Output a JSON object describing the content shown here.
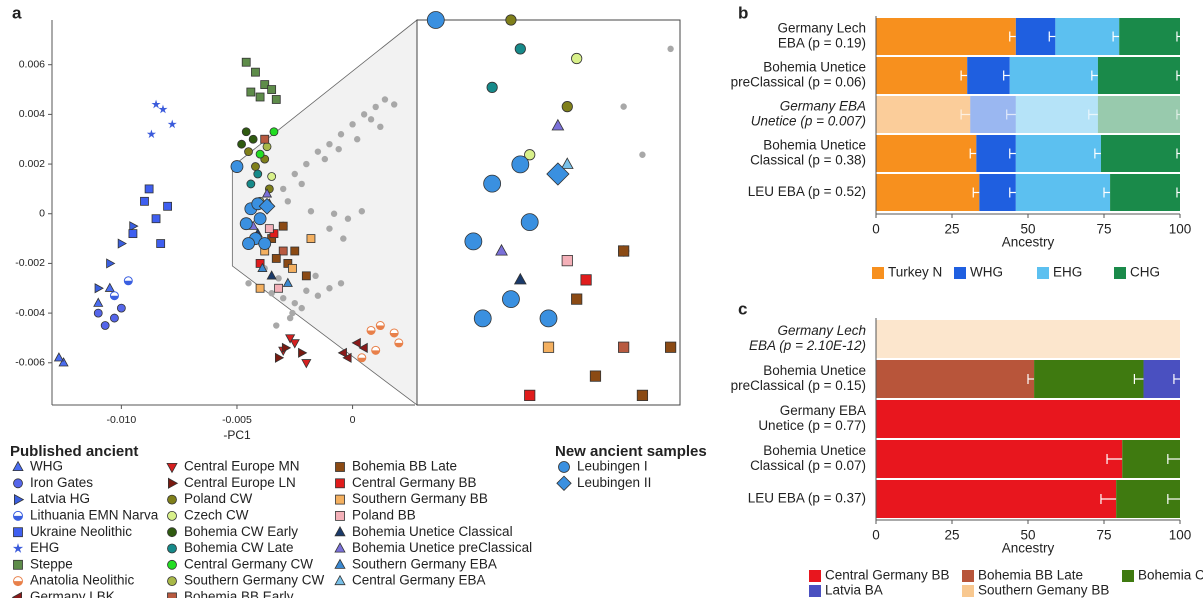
{
  "chart_data": [
    {
      "type": "scatter",
      "panel": "a",
      "x_label": "-PC1",
      "xlim": [
        -0.013,
        0.0027
      ],
      "ylim": [
        -0.0077,
        0.0078
      ],
      "xticks": [
        {
          "value": -0.01,
          "label": "-0.010"
        },
        -0.005,
        0
      ],
      "yticks": [
        -0.006,
        -0.004,
        -0.002,
        0,
        0.002,
        0.004,
        0.006
      ],
      "inset_xlim": [
        -0.0052,
        -0.0024
      ],
      "inset_ylim": [
        -0.0021,
        0.0019
      ],
      "background_points": {
        "color": "#a8a8a8",
        "x": [
          -0.003,
          -0.0025,
          -0.002,
          -0.0015,
          -0.001,
          -0.0005,
          0.0,
          0.0005,
          0.001,
          0.0014,
          0.0018,
          -0.0028,
          -0.0022,
          -0.0012,
          -0.0006,
          0.0002,
          0.0008,
          -0.0018,
          -0.001,
          -0.0004,
          0.0012,
          -0.0008,
          -0.0002,
          0.0004,
          -0.0045,
          -0.004,
          -0.0035,
          -0.003,
          -0.0025,
          -0.002,
          -0.0015,
          -0.001,
          -0.0005,
          -0.0032,
          -0.0026,
          -0.0038,
          -0.0033,
          -0.0027,
          -0.0022,
          -0.0016
        ],
        "y": [
          0.001,
          0.0016,
          0.002,
          0.0025,
          0.0028,
          0.0032,
          0.0036,
          0.004,
          0.0043,
          0.0046,
          0.0044,
          0.0005,
          0.0012,
          0.0022,
          0.0026,
          0.003,
          0.0038,
          0.0001,
          -0.0006,
          -0.001,
          0.0035,
          0.0,
          -0.0002,
          0.0001,
          -0.0028,
          -0.003,
          -0.0032,
          -0.0034,
          -0.0036,
          -0.0031,
          -0.0033,
          -0.003,
          -0.0028,
          -0.0026,
          -0.004,
          -0.0022,
          -0.0045,
          -0.0042,
          -0.0038,
          -0.0025
        ]
      },
      "legend_title": "Published ancient",
      "series": [
        {
          "name": "WHG",
          "color": "#4a6cf0",
          "marker": "triangle-up",
          "x": [
            -0.0125,
            -0.0127,
            -0.011,
            -0.0105
          ],
          "y": [
            -0.006,
            -0.0058,
            -0.0036,
            -0.003
          ]
        },
        {
          "name": "Iron Gates",
          "color": "#5566ea",
          "marker": "circle",
          "x": [
            -0.0107,
            -0.0103,
            -0.011,
            -0.01
          ],
          "y": [
            -0.0045,
            -0.0042,
            -0.004,
            -0.0038
          ]
        },
        {
          "name": "Latvia HG",
          "color": "#3a5fe0",
          "marker": "triangle-right",
          "x": [
            -0.0105,
            -0.01,
            -0.011,
            -0.0095
          ],
          "y": [
            -0.002,
            -0.0012,
            -0.003,
            -0.0005
          ]
        },
        {
          "name": "Lithuania EMN Narva",
          "color": "#3a5fe0",
          "marker": "half-circle",
          "x": [
            -0.0097,
            -0.0103
          ],
          "y": [
            -0.0027,
            -0.0033
          ]
        },
        {
          "name": "Ukraine Neolithic",
          "color": "#3f5ff0",
          "marker": "square",
          "x": [
            -0.009,
            -0.0085,
            -0.008,
            -0.0095,
            -0.0088,
            -0.0083
          ],
          "y": [
            0.0005,
            -0.0002,
            0.0003,
            -0.0008,
            0.001,
            -0.0012
          ]
        },
        {
          "name": "EHG",
          "color": "#3b5bdb",
          "marker": "star",
          "x": [
            -0.0085,
            -0.0087,
            -0.0078,
            -0.0082
          ],
          "y": [
            0.0044,
            0.0032,
            0.0036,
            0.0042
          ]
        },
        {
          "name": "Steppe",
          "color": "#5e8c4a",
          "marker": "square",
          "x": [
            -0.0042,
            -0.0038,
            -0.0035,
            -0.004,
            -0.0033,
            -0.0046,
            -0.0044
          ],
          "y": [
            0.0057,
            0.0052,
            0.005,
            0.0047,
            0.0046,
            0.0061,
            0.0049
          ]
        },
        {
          "name": "Anatolia Neolithic",
          "color": "#e8804a",
          "marker": "half-circle",
          "x": [
            0.0008,
            0.0012,
            0.0018,
            0.001,
            0.002,
            0.0004
          ],
          "y": [
            -0.0047,
            -0.0045,
            -0.0048,
            -0.0055,
            -0.0052,
            -0.0058
          ]
        },
        {
          "name": "Germany LBK",
          "color": "#8b1a1a",
          "marker": "triangle-left",
          "x": [
            -0.0004,
            0.0002,
            -0.0002,
            0.0005
          ],
          "y": [
            -0.0056,
            -0.0052,
            -0.0058,
            -0.0054
          ]
        },
        {
          "name": "Central Europe MN",
          "color": "#d62020",
          "marker": "triangle-down",
          "x": [
            -0.003,
            -0.0025,
            -0.002,
            -0.0027
          ],
          "y": [
            -0.0055,
            -0.0052,
            -0.006,
            -0.005
          ]
        },
        {
          "name": "Central Europe LN",
          "color": "#7a1a10",
          "marker": "triangle-right",
          "x": [
            -0.0032,
            -0.0022,
            -0.0029
          ],
          "y": [
            -0.0058,
            -0.0056,
            -0.0054
          ]
        },
        {
          "name": "Poland CW",
          "color": "#7f7f1a",
          "marker": "circle",
          "x": [
            -0.0045,
            -0.0038,
            -0.0042,
            -0.0036
          ],
          "y": [
            0.0025,
            0.0022,
            0.0019,
            0.001
          ]
        },
        {
          "name": "Czech CW",
          "color": "#d8f08a",
          "marker": "circle",
          "x": [
            -0.0035,
            -0.004
          ],
          "y": [
            0.0015,
            0.0005
          ]
        },
        {
          "name": "Bohemia CW Early",
          "color": "#2f5a10",
          "marker": "circle",
          "x": [
            -0.0046,
            -0.0043,
            -0.0048
          ],
          "y": [
            0.0033,
            0.003,
            0.0028
          ]
        },
        {
          "name": "Bohemia CW Late",
          "color": "#168a8a",
          "marker": "circle",
          "x": [
            -0.0044,
            -0.0041
          ],
          "y": [
            0.0012,
            0.0016
          ]
        },
        {
          "name": "Central Germany CW",
          "color": "#22dd22",
          "marker": "circle",
          "x": [
            -0.0034,
            -0.004
          ],
          "y": [
            0.0033,
            0.0024
          ]
        },
        {
          "name": "Southern Germany CW",
          "color": "#a8b848",
          "marker": "circle",
          "x": [
            -0.0037,
            -0.003
          ],
          "y": [
            0.0027,
            -0.0005
          ]
        },
        {
          "name": "Bohemia BB Early",
          "color": "#b85a40",
          "marker": "square",
          "x": [
            -0.0038,
            -0.003
          ],
          "y": [
            0.003,
            -0.0015
          ]
        },
        {
          "name": "Bohemia BB Late",
          "color": "#8b4a14",
          "marker": "square",
          "x": [
            -0.0035,
            -0.003,
            -0.0025,
            -0.0028,
            -0.002,
            -0.0033
          ],
          "y": [
            -0.001,
            -0.0005,
            -0.0015,
            -0.002,
            -0.0025,
            -0.0018
          ]
        },
        {
          "name": "Central Germany BB",
          "color": "#e01c1c",
          "marker": "square",
          "x": [
            -0.004,
            -0.0034
          ],
          "y": [
            -0.002,
            -0.0008
          ]
        },
        {
          "name": "Southern Germany BB",
          "color": "#f4b060",
          "marker": "square",
          "x": [
            -0.0038,
            -0.0026,
            -0.004,
            -0.0018
          ],
          "y": [
            -0.0015,
            -0.0022,
            -0.003,
            -0.001
          ]
        },
        {
          "name": "Poland BB",
          "color": "#f4b0b8",
          "marker": "square",
          "x": [
            -0.0032,
            -0.0036
          ],
          "y": [
            -0.003,
            -0.0006
          ]
        },
        {
          "name": "Bohemia Unetice Classical",
          "color": "#1a3a6a",
          "marker": "triangle-up",
          "x": [
            -0.0041,
            -0.0035
          ],
          "y": [
            -0.0008,
            -0.0025
          ]
        },
        {
          "name": "Bohemia Unetice preClassical",
          "color": "#7a70d8",
          "marker": "triangle-up",
          "x": [
            -0.0043,
            -0.0037
          ],
          "y": [
            -0.0005,
            0.0008
          ]
        },
        {
          "name": "Southern Germany EBA",
          "color": "#3a88d0",
          "marker": "triangle-up",
          "x": [
            -0.0039,
            -0.0028
          ],
          "y": [
            -0.0022,
            -0.0028
          ]
        },
        {
          "name": "Central Germany EBA",
          "color": "#78c0e8",
          "marker": "triangle-up",
          "x": [
            -0.0036
          ],
          "y": [
            0.0004
          ]
        }
      ],
      "new_samples_title": "New ancient samples",
      "new_series": [
        {
          "name": "Leubingen I",
          "color": "#3a90e0",
          "marker": "circle",
          "x": [
            -0.005,
            -0.0044,
            -0.004,
            -0.0046,
            -0.0042,
            -0.0038,
            -0.0045,
            -0.0041
          ],
          "y": [
            0.0019,
            0.0002,
            -0.0002,
            -0.0004,
            -0.001,
            -0.0012,
            -0.0012,
            0.0004
          ]
        },
        {
          "name": "Leubingen II",
          "color": "#3a90e0",
          "marker": "diamond",
          "x": [
            -0.0037
          ],
          "y": [
            0.0003
          ]
        }
      ]
    },
    {
      "type": "stacked_barh",
      "panel": "b",
      "x_label": "Ancestry",
      "xlim": [
        0,
        100
      ],
      "xticks": [
        0,
        25,
        50,
        75,
        100
      ],
      "categories": [
        [
          "Germany Lech",
          "EBA (p = 0.19)"
        ],
        [
          "Bohemia Unetice",
          "preClassical (p = 0.06)"
        ],
        [
          "Germany EBA",
          "Unetice (p = 0.007)"
        ],
        [
          "Bohemia Unetice",
          "Classical (p = 0.38)"
        ],
        [
          "LEU EBA (p = 0.52)"
        ]
      ],
      "rejected": [
        false,
        false,
        true,
        false,
        false
      ],
      "series": [
        {
          "name": "Turkey N",
          "color": "#f7901e",
          "values": [
            46,
            30,
            31,
            33,
            34
          ],
          "errors": [
            2,
            2,
            3,
            2,
            2
          ]
        },
        {
          "name": "WHG",
          "color": "#1f5fe0",
          "values": [
            13,
            14,
            15,
            13,
            12
          ],
          "errors": [
            2,
            2,
            3,
            2,
            2
          ]
        },
        {
          "name": "EHG",
          "color": "#5cc0f0",
          "values": [
            21,
            29,
            27,
            28,
            31
          ],
          "errors": [
            2,
            2,
            3,
            2,
            2
          ]
        },
        {
          "name": "CHG",
          "color": "#1a8a4a",
          "values": [
            20,
            27,
            27,
            26,
            23
          ],
          "errors": [
            1,
            1,
            1,
            1,
            1
          ]
        }
      ]
    },
    {
      "type": "stacked_barh",
      "panel": "c",
      "x_label": "Ancestry",
      "xlim": [
        0,
        100
      ],
      "xticks": [
        0,
        25,
        50,
        75,
        100
      ],
      "categories": [
        [
          "Germany Lech",
          "EBA (p = 2.10E-12)"
        ],
        [
          "Bohemia Unetice",
          "preClassical (p = 0.15)"
        ],
        [
          "Germany EBA",
          "Unetice (p = 0.77)"
        ],
        [
          "Bohemia Unetice",
          "Classical (p = 0.07)"
        ],
        [
          "LEU EBA (p = 0.37)"
        ]
      ],
      "rejected": [
        true,
        false,
        false,
        false,
        false
      ],
      "series": [
        {
          "name": "Central Germany BB",
          "color": "#e8161e",
          "values": [
            0,
            0,
            100,
            81,
            79
          ],
          "errors": [
            null,
            null,
            null,
            5,
            5
          ]
        },
        {
          "name": "Bohemia BB Late",
          "color": "#b8553a",
          "values": [
            0,
            52,
            0,
            0,
            0
          ],
          "errors": [
            null,
            2,
            null,
            null,
            null
          ]
        },
        {
          "name": "Southern Gemany BB",
          "color": "#f8c890",
          "values": [
            100,
            0,
            0,
            0,
            0
          ],
          "errors": [
            null,
            null,
            null,
            null,
            null
          ]
        },
        {
          "name": "Bohemia CW Early",
          "color": "#3f7a10",
          "values": [
            0,
            36,
            0,
            19,
            21
          ],
          "errors": [
            null,
            3,
            null,
            4,
            4
          ]
        },
        {
          "name": "Latvia BA",
          "color": "#4a50c0",
          "values": [
            0,
            12,
            0,
            0,
            0
          ],
          "errors": [
            null,
            2,
            null,
            null,
            null
          ]
        }
      ]
    }
  ]
}
